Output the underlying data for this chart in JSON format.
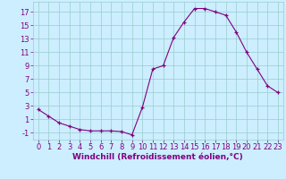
{
  "x": [
    0,
    1,
    2,
    3,
    4,
    5,
    6,
    7,
    8,
    9,
    10,
    11,
    12,
    13,
    14,
    15,
    16,
    17,
    18,
    19,
    20,
    21,
    22,
    23
  ],
  "y": [
    2.5,
    1.5,
    0.5,
    0.0,
    -0.5,
    -0.7,
    -0.7,
    -0.7,
    -0.8,
    -1.3,
    2.8,
    8.5,
    9.0,
    13.2,
    15.5,
    17.5,
    17.5,
    17.0,
    16.5,
    14.0,
    11.0,
    8.5,
    6.0,
    5.0
  ],
  "line_color": "#800080",
  "marker": "+",
  "bg_color": "#cceeff",
  "grid_color": "#99cccc",
  "axis_color": "#800080",
  "xlabel": "Windchill (Refroidissement éolien,°C)",
  "xlim": [
    -0.5,
    23.5
  ],
  "ylim": [
    -2,
    18.5
  ],
  "yticks": [
    -1,
    1,
    3,
    5,
    7,
    9,
    11,
    13,
    15,
    17
  ],
  "xticks": [
    0,
    1,
    2,
    3,
    4,
    5,
    6,
    7,
    8,
    9,
    10,
    11,
    12,
    13,
    14,
    15,
    16,
    17,
    18,
    19,
    20,
    21,
    22,
    23
  ],
  "label_fontsize": 6.5,
  "tick_fontsize": 6.0
}
